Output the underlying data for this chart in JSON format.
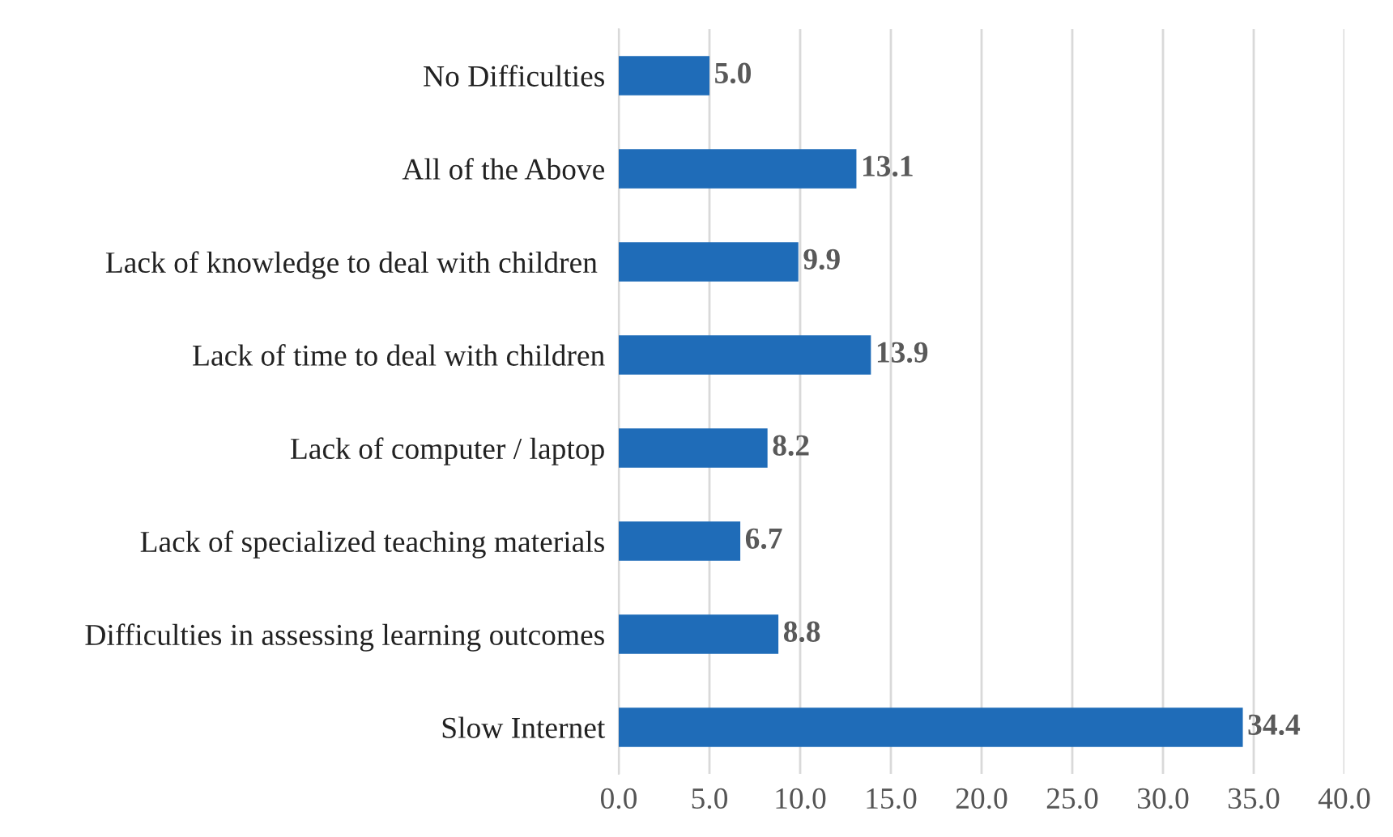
{
  "chart_data": {
    "type": "bar",
    "orientation": "horizontal",
    "categories": [
      "No Difficulties",
      "All of the Above",
      "Lack of knowledge to deal with children ",
      "Lack of time to deal with children",
      "Lack of computer / laptop",
      "Lack of specialized teaching materials",
      "Difficulties in assessing learning outcomes",
      "Slow Internet"
    ],
    "values": [
      5.0,
      13.1,
      9.9,
      13.9,
      8.2,
      6.7,
      8.8,
      34.4
    ],
    "value_labels": [
      "5.0",
      "13.1",
      "9.9",
      "13.9",
      "8.2",
      "6.7",
      "8.8",
      "34.4"
    ],
    "color": "#1f6cb8",
    "xlim": [
      0,
      40
    ],
    "xticks": [
      {
        "value": 0,
        "label": "0.0"
      },
      {
        "value": 5,
        "label": "5.0"
      },
      {
        "value": 10,
        "label": "10.0"
      },
      {
        "value": 15,
        "label": "15.0"
      },
      {
        "value": 20,
        "label": "20.0"
      },
      {
        "value": 25,
        "label": "25.0"
      },
      {
        "value": 30,
        "label": "30.0"
      },
      {
        "value": 35,
        "label": "35.0"
      },
      {
        "value": 40,
        "label": "40.0"
      }
    ],
    "grid": "x"
  }
}
